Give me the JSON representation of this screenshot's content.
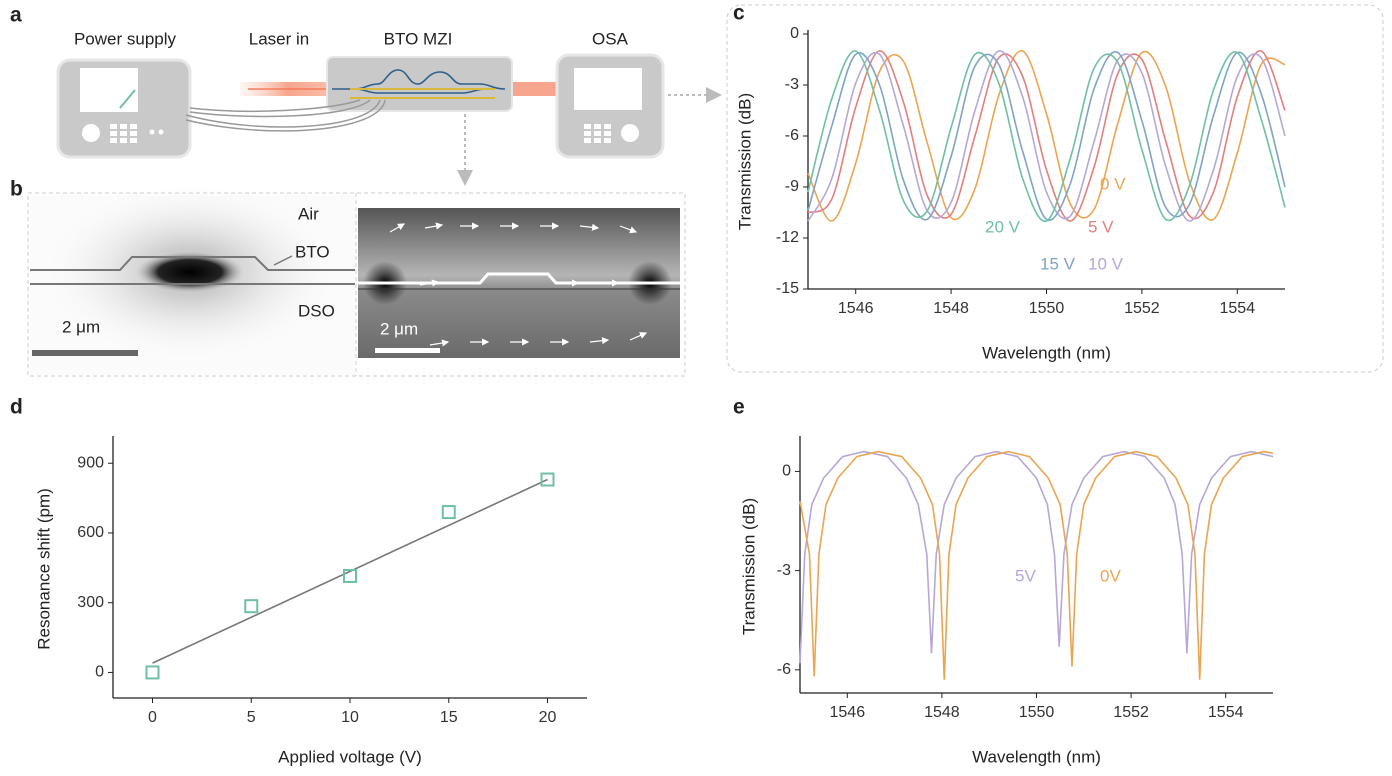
{
  "figure": {
    "panel_labels": [
      "a",
      "b",
      "c",
      "d",
      "e"
    ],
    "a": {
      "power_supply": "Power supply",
      "laser_in": "Laser in",
      "bto_mzi": "BTO MZI",
      "osa": "OSA"
    },
    "b": {
      "air": "Air",
      "bto": "BTO",
      "dso": "DSO",
      "scale_left": "2 μm",
      "scale_right": "2 μm"
    }
  },
  "chart_data": [
    {
      "type": "line",
      "smooth": true,
      "xlabel": "Wavelength (nm)",
      "ylabel": "Transmission (dB)",
      "x": [
        1545,
        1545.5,
        1546,
        1546.5,
        1547,
        1547.5,
        1548,
        1548.5,
        1549,
        1549.5,
        1550,
        1550.5,
        1551,
        1551.5,
        1552,
        1552.5,
        1553,
        1553.5,
        1554,
        1554.5,
        1555
      ],
      "series": [
        {
          "name": "0 V",
          "color": "#eaa552",
          "values": [
            -8.2,
            -11.0,
            -7.6,
            -2.2,
            -1.6,
            -6.4,
            -10.8,
            -9.1,
            -3.6,
            -1.0,
            -4.7,
            -10.0,
            -10.3,
            -5.2,
            -1.1,
            -3.1,
            -8.7,
            -10.9,
            -7.0,
            -1.8,
            -1.8
          ]
        },
        {
          "name": "5 V",
          "color": "#e37f7e",
          "values": [
            -10.5,
            -9.7,
            -4.3,
            -1.0,
            -4.0,
            -9.5,
            -10.6,
            -6.0,
            -1.4,
            -2.5,
            -8.0,
            -11.0,
            -7.8,
            -2.3,
            -1.5,
            -6.3,
            -10.7,
            -9.3,
            -3.7,
            -1.0,
            -4.5
          ]
        },
        {
          "name": "10 V",
          "color": "#b7a7d6",
          "values": [
            -11.0,
            -8.5,
            -2.9,
            -1.2,
            -5.4,
            -10.4,
            -9.9,
            -4.5,
            -1.0,
            -3.7,
            -9.3,
            -10.7,
            -6.3,
            -1.5,
            -2.3,
            -7.8,
            -11.0,
            -8.0,
            -2.5,
            -1.4,
            -6.0
          ]
        },
        {
          "name": "15 V",
          "color": "#7fa3c6",
          "values": [
            -10.4,
            -5.4,
            -1.2,
            -3.0,
            -8.6,
            -10.9,
            -7.2,
            -1.9,
            -1.8,
            -6.9,
            -10.9,
            -8.8,
            -3.2,
            -1.1,
            -5.1,
            -10.2,
            -10.0,
            -4.8,
            -1.1,
            -3.5,
            -9.0
          ]
        },
        {
          "name": "20 V",
          "color": "#6fbfa6",
          "values": [
            -9.3,
            -3.8,
            -1.0,
            -4.5,
            -9.8,
            -10.4,
            -5.5,
            -1.2,
            -2.9,
            -8.5,
            -11.0,
            -7.3,
            -2.0,
            -1.7,
            -6.8,
            -10.9,
            -8.9,
            -3.3,
            -1.1,
            -5.0,
            -10.2
          ]
        }
      ],
      "xlim": [
        1545,
        1555
      ],
      "ylim": [
        -15,
        0
      ],
      "xticks": [
        1546,
        1548,
        1550,
        1552,
        1554
      ],
      "yticks": [
        0,
        -3,
        -6,
        -9,
        -12,
        -15
      ]
    },
    {
      "type": "scatter",
      "xlabel": "Applied voltage (V)",
      "ylabel": "Resonance shift (pm)",
      "x": [
        0,
        5,
        10,
        15,
        20
      ],
      "series": [
        {
          "color": "#6fbfa6",
          "values": [
            0,
            285,
            415,
            690,
            830
          ]
        }
      ],
      "fit": {
        "x": [
          0,
          20
        ],
        "values": [
          40,
          830
        ],
        "color": "#777777"
      },
      "xlim": [
        -2,
        22
      ],
      "ylim": [
        -110,
        1000
      ],
      "xticks": [
        0,
        5,
        10,
        15,
        20
      ],
      "yticks": [
        0,
        300,
        600,
        900
      ]
    },
    {
      "type": "line",
      "xlabel": "Wavelength (nm)",
      "ylabel": "Transmission (dB)",
      "series": [
        {
          "name": "5V",
          "color": "#b7a7d6",
          "x": [
            1545,
            1545.1,
            1545.25,
            1545.5,
            1545.9,
            1546.35,
            1546.85,
            1547.25,
            1547.5,
            1547.68,
            1547.78,
            1547.88,
            1548.05,
            1548.3,
            1548.7,
            1549.15,
            1549.6,
            1550,
            1550.23,
            1550.38,
            1550.48,
            1550.58,
            1550.75,
            1551,
            1551.4,
            1551.85,
            1552.3,
            1552.7,
            1552.93,
            1553.08,
            1553.18,
            1553.28,
            1553.45,
            1553.7,
            1554.1,
            1554.55,
            1555
          ],
          "values": [
            -5.8,
            -2.5,
            -1.0,
            -0.2,
            0.45,
            0.6,
            0.45,
            -0.2,
            -1.0,
            -2.5,
            -5.5,
            -2.5,
            -1.0,
            -0.2,
            0.45,
            0.6,
            0.45,
            -0.2,
            -1.0,
            -2.5,
            -5.3,
            -2.5,
            -1.0,
            -0.2,
            0.45,
            0.6,
            0.45,
            -0.2,
            -1.0,
            -2.5,
            -5.5,
            -2.5,
            -1.0,
            -0.2,
            0.45,
            0.6,
            0.45
          ]
        },
        {
          "name": "0V",
          "color": "#eaa552",
          "x": [
            1545,
            1545.2,
            1545.3,
            1545.4,
            1545.55,
            1545.8,
            1546.2,
            1546.65,
            1547.15,
            1547.55,
            1547.8,
            1547.95,
            1548.05,
            1548.15,
            1548.3,
            1548.55,
            1548.95,
            1549.4,
            1549.85,
            1550.25,
            1550.5,
            1550.65,
            1550.75,
            1550.85,
            1551,
            1551.25,
            1551.65,
            1552.1,
            1552.55,
            1552.95,
            1553.2,
            1553.35,
            1553.45,
            1553.55,
            1553.7,
            1553.95,
            1554.35,
            1554.8,
            1555
          ],
          "values": [
            -0.9,
            -2.5,
            -6.2,
            -2.5,
            -1.0,
            -0.2,
            0.45,
            0.6,
            0.45,
            -0.2,
            -1.0,
            -2.5,
            -6.3,
            -2.5,
            -1.0,
            -0.2,
            0.45,
            0.6,
            0.45,
            -0.2,
            -1.0,
            -2.5,
            -5.9,
            -2.5,
            -1.0,
            -0.2,
            0.45,
            0.6,
            0.45,
            -0.2,
            -1.0,
            -2.5,
            -6.3,
            -2.5,
            -1.0,
            -0.2,
            0.45,
            0.6,
            0.55
          ]
        }
      ],
      "xlim": [
        1545,
        1555
      ],
      "ylim": [
        -6.7,
        0.95
      ],
      "xticks": [
        1546,
        1548,
        1550,
        1552,
        1554
      ],
      "yticks": [
        0,
        -3,
        -6
      ]
    }
  ]
}
